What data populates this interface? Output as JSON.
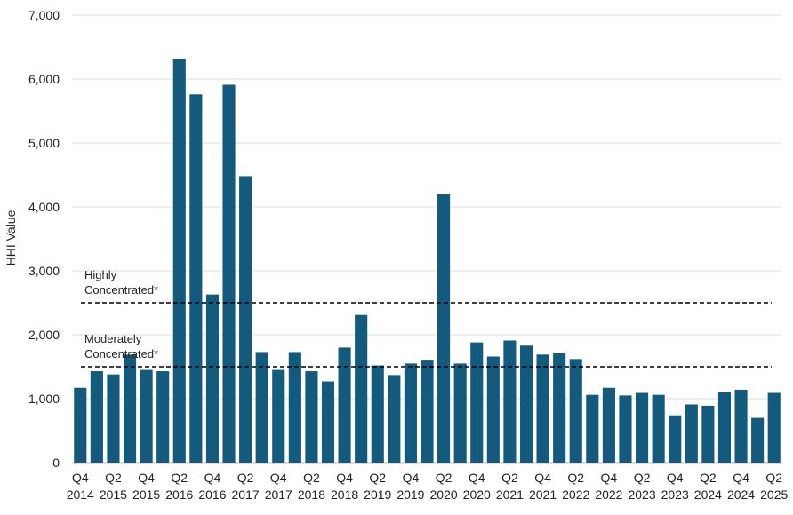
{
  "chart_data": {
    "type": "bar",
    "ylabel": "HHI Value",
    "ylim": [
      0,
      7000
    ],
    "yticks": [
      0,
      1000,
      2000,
      3000,
      4000,
      5000,
      6000,
      7000
    ],
    "ytick_labels": [
      "0",
      "1,000",
      "2,000",
      "3,000",
      "4,000",
      "5,000",
      "6,000",
      "7,000"
    ],
    "grid": true,
    "bar_color": "#135a7d",
    "categories": [
      "Q4 2014",
      "Q1 2015",
      "Q2 2015",
      "Q3 2015",
      "Q4 2015",
      "Q1 2016",
      "Q2 2016",
      "Q3 2016",
      "Q4 2016",
      "Q1 2017",
      "Q2 2017",
      "Q3 2017",
      "Q4 2017",
      "Q1 2018",
      "Q2 2018",
      "Q3 2018",
      "Q4 2018",
      "Q1 2019",
      "Q2 2019",
      "Q3 2019",
      "Q4 2019",
      "Q1 2020",
      "Q2 2020",
      "Q3 2020",
      "Q4 2020",
      "Q1 2021",
      "Q2 2021",
      "Q3 2021",
      "Q4 2021",
      "Q1 2022",
      "Q2 2022",
      "Q3 2022",
      "Q4 2022",
      "Q1 2023",
      "Q2 2023",
      "Q3 2023",
      "Q4 2023",
      "Q1 2024",
      "Q2 2024",
      "Q3 2024",
      "Q4 2024",
      "Q1 2025",
      "Q2 2025"
    ],
    "values": [
      1170,
      1430,
      1380,
      1690,
      1450,
      1430,
      6310,
      5760,
      2630,
      5910,
      4480,
      1730,
      1450,
      1730,
      1430,
      1270,
      1800,
      2310,
      1520,
      1370,
      1550,
      1610,
      4200,
      1550,
      1880,
      1660,
      1910,
      1830,
      1690,
      1710,
      1620,
      1060,
      1170,
      1050,
      1090,
      1060,
      740,
      910,
      890,
      1100,
      1140,
      700,
      1090
    ],
    "x_tick_labels": [
      {
        "index": 0,
        "quarter": "Q4",
        "year": "2014"
      },
      {
        "index": 2,
        "quarter": "Q2",
        "year": "2015"
      },
      {
        "index": 4,
        "quarter": "Q4",
        "year": "2015"
      },
      {
        "index": 6,
        "quarter": "Q2",
        "year": "2016"
      },
      {
        "index": 8,
        "quarter": "Q4",
        "year": "2016"
      },
      {
        "index": 10,
        "quarter": "Q2",
        "year": "2017"
      },
      {
        "index": 12,
        "quarter": "Q4",
        "year": "2017"
      },
      {
        "index": 14,
        "quarter": "Q2",
        "year": "2018"
      },
      {
        "index": 16,
        "quarter": "Q4",
        "year": "2018"
      },
      {
        "index": 18,
        "quarter": "Q2",
        "year": "2019"
      },
      {
        "index": 20,
        "quarter": "Q4",
        "year": "2019"
      },
      {
        "index": 22,
        "quarter": "Q2",
        "year": "2020"
      },
      {
        "index": 24,
        "quarter": "Q4",
        "year": "2020"
      },
      {
        "index": 26,
        "quarter": "Q2",
        "year": "2021"
      },
      {
        "index": 28,
        "quarter": "Q4",
        "year": "2021"
      },
      {
        "index": 30,
        "quarter": "Q2",
        "year": "2022"
      },
      {
        "index": 32,
        "quarter": "Q4",
        "year": "2022"
      },
      {
        "index": 34,
        "quarter": "Q2",
        "year": "2023"
      },
      {
        "index": 36,
        "quarter": "Q4",
        "year": "2023"
      },
      {
        "index": 38,
        "quarter": "Q2",
        "year": "2024"
      },
      {
        "index": 40,
        "quarter": "Q4",
        "year": "2024"
      },
      {
        "index": 42,
        "quarter": "Q2",
        "year": "2025"
      }
    ],
    "reference_lines": [
      {
        "value": 2500,
        "label_lines": [
          "Highly",
          "Concentrated*"
        ],
        "style": "dashed",
        "color": "#000000"
      },
      {
        "value": 1500,
        "label_lines": [
          "Moderately",
          "Concentrated*"
        ],
        "style": "dashed",
        "color": "#000000"
      }
    ]
  }
}
